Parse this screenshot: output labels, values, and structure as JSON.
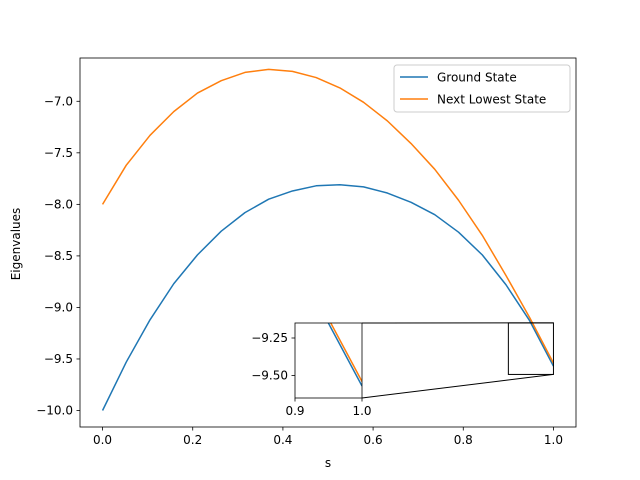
{
  "chart_data": {
    "type": "line",
    "title": "",
    "xlabel": "s",
    "ylabel": "Eigenvalues",
    "xlim": [
      -0.05,
      1.05
    ],
    "ylim": [
      -10.16,
      -6.58
    ],
    "xticks": [
      0.0,
      0.2,
      0.4,
      0.6,
      0.8,
      1.0
    ],
    "xtick_labels": [
      "0.0",
      "0.2",
      "0.4",
      "0.6",
      "0.8",
      "1.0"
    ],
    "yticks": [
      -10.0,
      -9.5,
      -9.0,
      -8.5,
      -8.0,
      -7.5,
      -7.0
    ],
    "ytick_labels": [
      "−10.0",
      "−9.5",
      "−9.0",
      "−8.5",
      "−8.0",
      "−7.5",
      "−7.0"
    ],
    "grid": false,
    "legend_position": "top-right",
    "x": [
      0.0,
      0.0526,
      0.1053,
      0.1579,
      0.2105,
      0.2632,
      0.3158,
      0.3684,
      0.4211,
      0.4737,
      0.5263,
      0.5789,
      0.6316,
      0.6842,
      0.7368,
      0.7895,
      0.8421,
      0.8947,
      0.9474,
      1.0
    ],
    "series": [
      {
        "name": "Ground State",
        "color": "#1f77b4",
        "values": [
          -10.0,
          -9.53,
          -9.12,
          -8.77,
          -8.49,
          -8.26,
          -8.08,
          -7.95,
          -7.87,
          -7.82,
          -7.81,
          -7.83,
          -7.89,
          -7.98,
          -8.1,
          -8.27,
          -8.49,
          -8.78,
          -9.13,
          -9.57
        ]
      },
      {
        "name": "Next Lowest State",
        "color": "#ff7f0e",
        "values": [
          -8.0,
          -7.62,
          -7.33,
          -7.1,
          -6.92,
          -6.8,
          -6.72,
          -6.69,
          -6.71,
          -6.77,
          -6.87,
          -7.01,
          -7.19,
          -7.41,
          -7.66,
          -7.96,
          -8.3,
          -8.69,
          -9.1,
          -9.54
        ]
      }
    ],
    "inset": {
      "xlim": [
        0.9,
        1.0
      ],
      "ylim": [
        -9.65,
        -9.15
      ],
      "xticks": [
        0.9,
        1.0
      ],
      "xtick_labels": [
        "0.9",
        "1.0"
      ],
      "yticks": [
        -9.25,
        -9.5
      ],
      "ytick_labels": [
        "−9.25",
        "−9.50"
      ],
      "zoom_region": {
        "x": [
          0.9,
          1.0
        ],
        "y": [
          -9.65,
          -9.15
        ]
      }
    }
  }
}
